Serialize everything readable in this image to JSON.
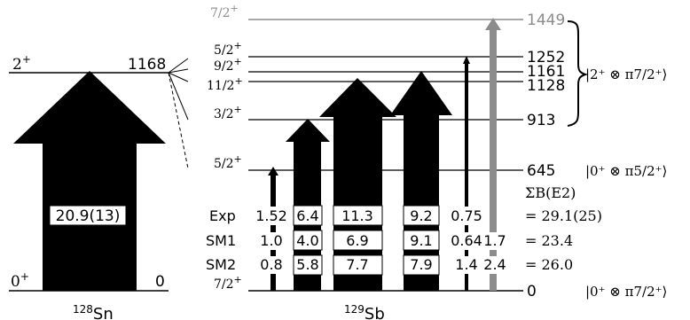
{
  "colors": {
    "arrow": "#000000",
    "highlight_arrow": "#8c8c8c",
    "level_line": "#000000",
    "highlight_line": "#8c8c8c"
  },
  "sn": {
    "label_pre": "128",
    "label_main": "Sn",
    "ground_spin": "0",
    "ground_parity": "+",
    "ground_energy": "0",
    "excited_spin": "2",
    "excited_parity": "+",
    "excited_energy": "1168",
    "arrow_value": "20.9(13)"
  },
  "sb": {
    "label_pre": "129",
    "label_main": "Sb",
    "levels": [
      {
        "spin": "7/2",
        "parity": "+",
        "energy": "1449",
        "highlight": true
      },
      {
        "spin": "5/2",
        "parity": "+",
        "energy": "1252",
        "highlight": false
      },
      {
        "spin": "9/2",
        "parity": "+",
        "energy": "1161",
        "highlight": false
      },
      {
        "spin": "11/2",
        "parity": "+",
        "energy": "1128",
        "highlight": false
      },
      {
        "spin": "3/2",
        "parity": "+",
        "energy": "913",
        "highlight": false
      },
      {
        "spin": "5/2",
        "parity": "+",
        "energy": "645",
        "highlight": false
      },
      {
        "spin": "7/2",
        "parity": "+",
        "energy": "0",
        "highlight": false
      }
    ],
    "configs": {
      "multiplet": "|2⁺ ⊗ π7/2⁺⟩",
      "level_645": "|0⁺ ⊗ π5/2⁺⟩",
      "ground": "|0⁺ ⊗ π7/2⁺⟩"
    },
    "sum_header": "ΣB(E2)",
    "rows": [
      {
        "label": "Exp",
        "values": [
          "1.52",
          "6.4",
          "11.3",
          "9.2",
          "0.75",
          ""
        ],
        "sum": "= 29.1(25)"
      },
      {
        "label": "SM1",
        "values": [
          "1.0",
          "4.0",
          "6.9",
          "9.1",
          "0.64",
          "1.7"
        ],
        "sum": "= 23.4"
      },
      {
        "label": "SM2",
        "values": [
          "0.8",
          "5.8",
          "7.7",
          "7.9",
          "1.4",
          "2.4"
        ],
        "sum": "= 26.0"
      }
    ]
  }
}
